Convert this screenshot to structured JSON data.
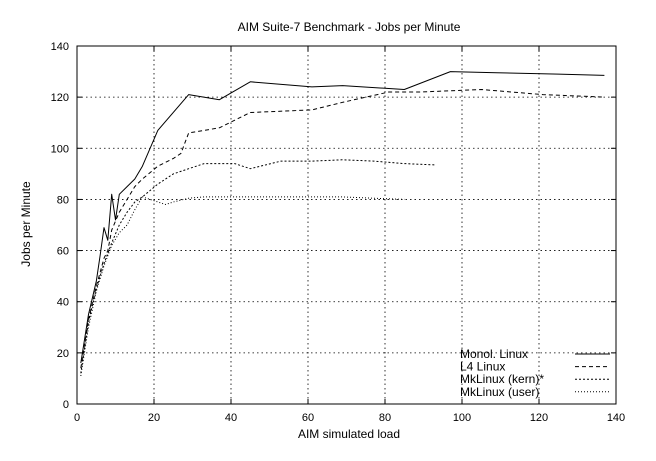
{
  "chart_data": {
    "type": "line",
    "title": "AIM Suite-7 Benchmark - Jobs per Minute",
    "xlabel": "AIM simulated load",
    "ylabel": "Jobs per Minute",
    "xlim": [
      0,
      140
    ],
    "ylim": [
      0,
      140
    ],
    "xticks": [
      0,
      20,
      40,
      60,
      80,
      100,
      120,
      140
    ],
    "yticks": [
      0,
      20,
      40,
      60,
      80,
      100,
      120,
      140
    ],
    "grid": true,
    "legend_position": "bottom-right",
    "series": [
      {
        "name": "Monol. Linux",
        "style": "solid",
        "points": [
          [
            1,
            16
          ],
          [
            3,
            35
          ],
          [
            5,
            48
          ],
          [
            6,
            58
          ],
          [
            7,
            69
          ],
          [
            8,
            64
          ],
          [
            9,
            82
          ],
          [
            10,
            72
          ],
          [
            11,
            82
          ],
          [
            13,
            85
          ],
          [
            15,
            88
          ],
          [
            17,
            93
          ],
          [
            21,
            107
          ],
          [
            29,
            121
          ],
          [
            37,
            119
          ],
          [
            45,
            126
          ],
          [
            61,
            124
          ],
          [
            69,
            124.5
          ],
          [
            85,
            123
          ],
          [
            97,
            130
          ],
          [
            109,
            129.5
          ],
          [
            125,
            129
          ],
          [
            137,
            128.5
          ]
        ]
      },
      {
        "name": "L4 Linux",
        "style": "dashed",
        "points": [
          [
            1,
            14
          ],
          [
            3,
            33
          ],
          [
            5,
            46
          ],
          [
            7,
            57
          ],
          [
            8,
            60
          ],
          [
            9,
            68
          ],
          [
            11,
            75
          ],
          [
            13,
            80
          ],
          [
            15,
            85
          ],
          [
            17,
            88
          ],
          [
            21,
            93
          ],
          [
            25,
            96
          ],
          [
            27,
            98
          ],
          [
            29,
            106
          ],
          [
            33,
            107
          ],
          [
            37,
            108
          ],
          [
            45,
            114
          ],
          [
            61,
            115
          ],
          [
            69,
            118
          ],
          [
            81,
            122
          ],
          [
            89,
            122
          ],
          [
            97,
            122.5
          ],
          [
            105,
            123
          ],
          [
            121,
            121
          ],
          [
            137,
            120
          ]
        ]
      },
      {
        "name": "MkLinux (kern)*",
        "style": "dense-dotted",
        "points": [
          [
            1,
            12
          ],
          [
            3,
            32
          ],
          [
            5,
            45
          ],
          [
            7,
            55
          ],
          [
            9,
            63
          ],
          [
            11,
            70
          ],
          [
            13,
            75
          ],
          [
            15,
            79
          ],
          [
            17,
            81
          ],
          [
            21,
            86
          ],
          [
            25,
            90
          ],
          [
            29,
            92
          ],
          [
            33,
            94
          ],
          [
            41,
            94
          ],
          [
            45,
            92
          ],
          [
            53,
            95
          ],
          [
            61,
            95
          ],
          [
            69,
            95.5
          ],
          [
            77,
            95
          ],
          [
            85,
            94
          ],
          [
            93,
            93.5
          ]
        ]
      },
      {
        "name": "MkLinux (user)",
        "style": "sparse-dotted",
        "points": [
          [
            1,
            11
          ],
          [
            3,
            30
          ],
          [
            5,
            44
          ],
          [
            7,
            54
          ],
          [
            9,
            62
          ],
          [
            11,
            67
          ],
          [
            13,
            70
          ],
          [
            15,
            76
          ],
          [
            17,
            81
          ],
          [
            19,
            80
          ],
          [
            23,
            78
          ],
          [
            25,
            79
          ],
          [
            29,
            80.5
          ],
          [
            33,
            81
          ],
          [
            41,
            81
          ],
          [
            53,
            81
          ],
          [
            61,
            81
          ],
          [
            69,
            81
          ],
          [
            77,
            80.5
          ],
          [
            85,
            80
          ]
        ]
      }
    ]
  }
}
